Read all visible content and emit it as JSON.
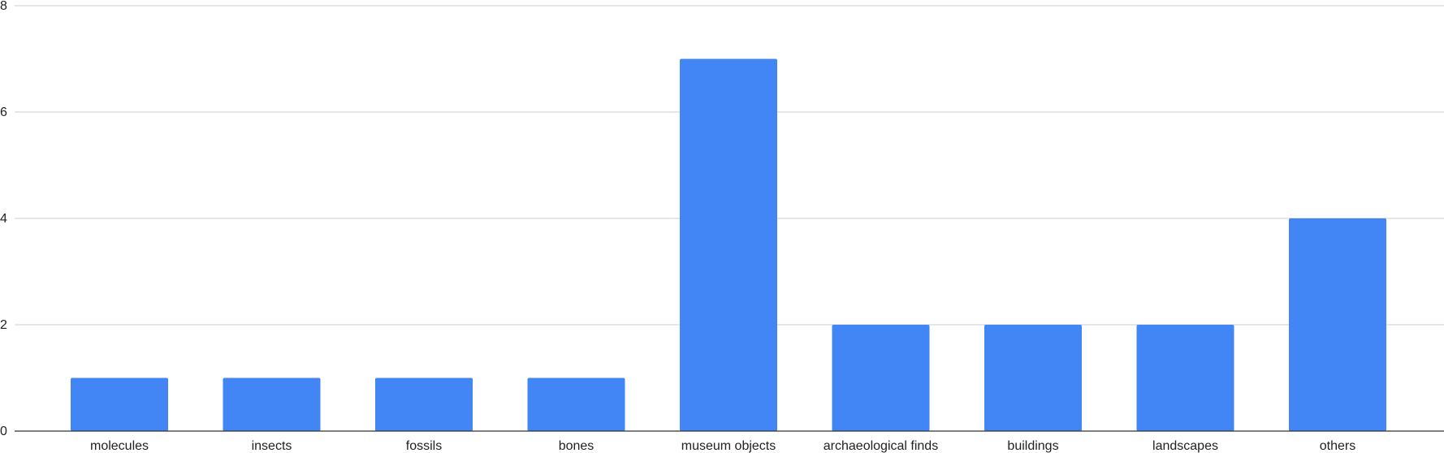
{
  "chart_data": {
    "type": "bar",
    "categories": [
      "molecules",
      "insects",
      "fossils",
      "bones",
      "museum objects",
      "archaeological finds",
      "buildings",
      "landscapes",
      "others"
    ],
    "values": [
      1,
      1,
      1,
      1,
      7,
      2,
      2,
      2,
      4
    ],
    "ylim": [
      0,
      8
    ],
    "yticks": [
      0,
      2,
      4,
      6,
      8
    ],
    "grid": true,
    "bar_color": "#4285f4",
    "title": "",
    "xlabel": "",
    "ylabel": ""
  }
}
